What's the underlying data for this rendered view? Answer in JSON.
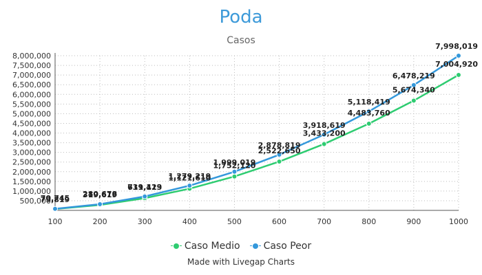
{
  "chart_data": {
    "type": "line",
    "title": "Poda",
    "subtitle": "Casos",
    "xlabel": "",
    "ylabel": "",
    "x": [
      100,
      200,
      300,
      400,
      500,
      600,
      700,
      800,
      900,
      1000
    ],
    "ylim": [
      0,
      8000000
    ],
    "yticks": [
      500000,
      1000000,
      1500000,
      2000000,
      2500000,
      3000000,
      3500000,
      4000000,
      4500000,
      5000000,
      5500000,
      6000000,
      6500000,
      7000000,
      7500000,
      8000000
    ],
    "grid": true,
    "legend_position": "bottom",
    "series": [
      {
        "name": "Caso Medio",
        "color": "#2ecc71",
        "values": [
          70745,
          280678,
          631123,
          1121610,
          1752120,
          2522650,
          3433200,
          4483760,
          5674340,
          7004920
        ]
      },
      {
        "name": "Caso Peor",
        "color": "#3498db",
        "values": [
          79819,
          319619,
          719419,
          1279219,
          1999019,
          2878819,
          3918619,
          5118419,
          6478219,
          7998019
        ]
      }
    ]
  },
  "footer": {
    "credit": "Made with Livegap Charts"
  }
}
